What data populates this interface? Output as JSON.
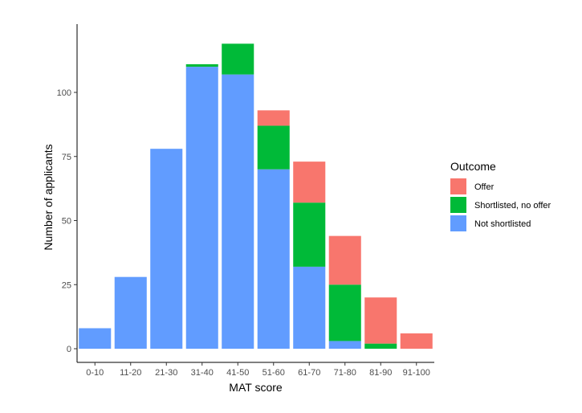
{
  "chart_data": {
    "type": "bar",
    "stacked": true,
    "categories": [
      "0-10",
      "11-20",
      "21-30",
      "31-40",
      "41-50",
      "51-60",
      "61-70",
      "71-80",
      "81-90",
      "91-100"
    ],
    "series": [
      {
        "name": "Not shortlisted",
        "color": "#619CFF",
        "values": [
          8,
          28,
          78,
          110,
          107,
          70,
          32,
          3,
          0,
          0
        ]
      },
      {
        "name": "Shortlisted, no offer",
        "color": "#00BA38",
        "values": [
          0,
          0,
          0,
          1,
          12,
          17,
          25,
          22,
          2,
          0
        ]
      },
      {
        "name": "Offer",
        "color": "#F8766D",
        "values": [
          0,
          0,
          0,
          0,
          0,
          6,
          16,
          19,
          18,
          6
        ]
      }
    ],
    "xlabel": "MAT score",
    "ylabel": "Number of applicants",
    "ylim": [
      0,
      120
    ],
    "yticks": [
      0,
      25,
      50,
      75,
      100
    ],
    "grid": false,
    "legend": {
      "title": "Outcome",
      "position": "right",
      "entries": [
        "Offer",
        "Shortlisted, no offer",
        "Not shortlisted"
      ]
    }
  }
}
